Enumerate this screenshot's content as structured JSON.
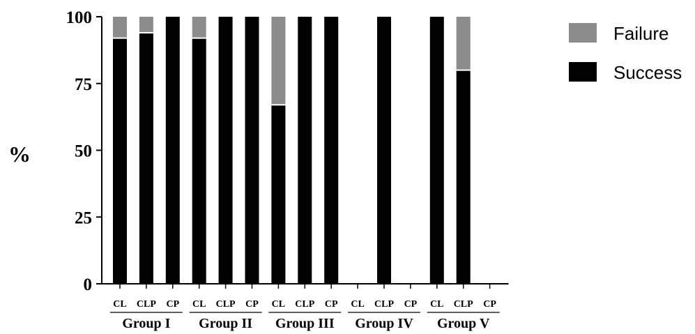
{
  "chart_data": {
    "type": "bar",
    "stacked": true,
    "ylabel": "%",
    "ylim": [
      0,
      100
    ],
    "yticks": [
      0,
      25,
      50,
      75,
      100
    ],
    "grid": false,
    "legend_position": "top-right",
    "categories": [
      {
        "group": "Group I",
        "label": "CL"
      },
      {
        "group": "Group I",
        "label": "CLP"
      },
      {
        "group": "Group I",
        "label": "CP"
      },
      {
        "group": "Group II",
        "label": "CL"
      },
      {
        "group": "Group II",
        "label": "CLP"
      },
      {
        "group": "Group II",
        "label": "CP"
      },
      {
        "group": "Group III",
        "label": "CL"
      },
      {
        "group": "Group III",
        "label": "CLP"
      },
      {
        "group": "Group III",
        "label": "CP"
      },
      {
        "group": "Group IV",
        "label": "CL"
      },
      {
        "group": "Group IV",
        "label": "CLP"
      },
      {
        "group": "Group IV",
        "label": "CP"
      },
      {
        "group": "Group V",
        "label": "CL"
      },
      {
        "group": "Group V",
        "label": "CLP"
      },
      {
        "group": "Group V",
        "label": "CP"
      }
    ],
    "groups": [
      "Group I",
      "Group II",
      "Group III",
      "Group IV",
      "Group V"
    ],
    "series": [
      {
        "name": "Success",
        "color": "#000000",
        "values": [
          92,
          94,
          100,
          92,
          100,
          100,
          67,
          100,
          100,
          null,
          100,
          null,
          100,
          80,
          null
        ]
      },
      {
        "name": "Failure",
        "color": "#8c8c8c",
        "values": [
          8,
          6,
          0,
          8,
          0,
          0,
          33,
          0,
          0,
          null,
          0,
          null,
          0,
          20,
          null
        ]
      }
    ],
    "legend": [
      {
        "name": "Failure",
        "color": "#8c8c8c"
      },
      {
        "name": "Success",
        "color": "#000000"
      }
    ]
  }
}
